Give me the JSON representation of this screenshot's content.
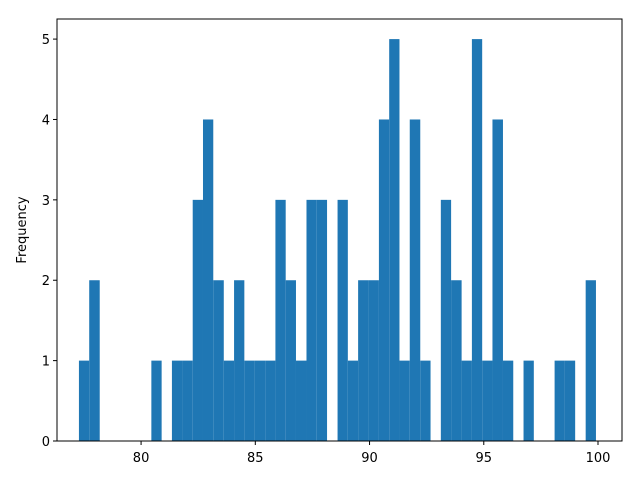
{
  "chart_data": {
    "type": "histogram",
    "ylabel": "Frequency",
    "color": "#1f77b4",
    "bins": [
      77.28,
      77.73,
      78.19,
      78.64,
      79.09,
      79.54,
      80.0,
      80.45,
      80.9,
      81.35,
      81.81,
      82.26,
      82.71,
      83.16,
      83.62,
      84.07,
      84.52,
      84.97,
      85.43,
      85.88,
      86.33,
      86.78,
      87.24,
      87.69,
      88.14,
      88.6,
      89.05,
      89.5,
      89.95,
      90.41,
      90.86,
      91.31,
      91.76,
      92.22,
      92.67,
      93.12,
      93.57,
      94.03,
      94.48,
      94.93,
      95.38,
      95.84,
      96.29,
      96.74,
      97.19,
      97.65,
      98.1,
      98.55,
      99.0,
      99.46,
      99.91
    ],
    "values": [
      1,
      2,
      0,
      0,
      0,
      0,
      0,
      1,
      0,
      1,
      1,
      3,
      4,
      2,
      1,
      2,
      1,
      1,
      1,
      3,
      2,
      1,
      3,
      3,
      0,
      3,
      1,
      2,
      2,
      4,
      5,
      1,
      4,
      1,
      0,
      3,
      2,
      1,
      5,
      1,
      4,
      1,
      0,
      1,
      0,
      0,
      1,
      1,
      0,
      2
    ],
    "xlim": [
      76.32,
      101.05
    ],
    "xticks": [
      80,
      85,
      90,
      95,
      100
    ],
    "ylim": [
      0,
      5.25
    ],
    "yticks": [
      0,
      1,
      2,
      3,
      4,
      5
    ]
  }
}
